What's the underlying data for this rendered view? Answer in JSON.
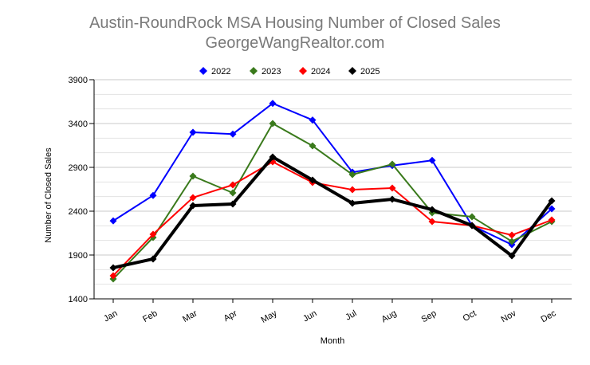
{
  "chart_data": {
    "type": "line",
    "title": "Austin-RoundRock MSA Housing Number of Closed Sales",
    "subtitle": "GeorgeWangRealtor.com",
    "xlabel": "Month",
    "ylabel": "Number of Closed Sales",
    "categories": [
      "Jan",
      "Feb",
      "Mar",
      "Apr",
      "May",
      "Jun",
      "Jul",
      "Aug",
      "Sep",
      "Oct",
      "Nov",
      "Dec"
    ],
    "ylim": [
      1400,
      3900
    ],
    "yticks": [
      1400,
      1900,
      2400,
      2900,
      3400,
      3900
    ],
    "grid": true,
    "legend": "top",
    "series": [
      {
        "name": "2022",
        "color": "#0000ff",
        "values": [
          2290,
          2580,
          3300,
          3280,
          3630,
          3440,
          2845,
          2920,
          2980,
          2236,
          2018,
          2427
        ]
      },
      {
        "name": "2023",
        "color": "#3a7a1c",
        "values": [
          1627,
          2100,
          2800,
          2609,
          3400,
          3145,
          2818,
          2936,
          2382,
          2336,
          2055,
          2282
        ]
      },
      {
        "name": "2024",
        "color": "#ff0000",
        "values": [
          1664,
          2136,
          2555,
          2700,
          2964,
          2727,
          2645,
          2664,
          2282,
          2236,
          2127,
          2300
        ]
      },
      {
        "name": "2025",
        "color": "#000000",
        "values": [
          1755,
          1855,
          2464,
          2482,
          3018,
          2755,
          2491,
          2536,
          2418,
          2236,
          1891,
          2518
        ]
      }
    ]
  }
}
